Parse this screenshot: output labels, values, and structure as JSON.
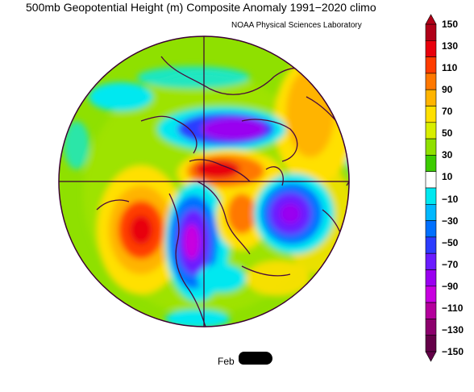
{
  "map": {
    "title": "500mb Geopotential Height (m) Composite Anomaly 1991−2020 climo",
    "credit": "NOAA Physical Sciences Laboratory",
    "date_label": "Feb",
    "projection": "north-polar-stereographic",
    "colorbar": {
      "labels": [
        "150",
        "130",
        "110",
        "90",
        "70",
        "50",
        "30",
        "10",
        "−10",
        "−30",
        "−50",
        "−70",
        "−90",
        "−110",
        "−130",
        "−150"
      ],
      "colors": [
        "#b00018",
        "#e8000c",
        "#ff3c00",
        "#ff7800",
        "#ffb400",
        "#ffe000",
        "#d8ee00",
        "#8fe000",
        "#3ccc00",
        "#ffffff",
        "#00e8f0",
        "#00b8ff",
        "#0070ff",
        "#2c3cff",
        "#6a1cff",
        "#9a00f0",
        "#c800e0",
        "#b4009c",
        "#8c006c",
        "#640048"
      ]
    }
  }
}
